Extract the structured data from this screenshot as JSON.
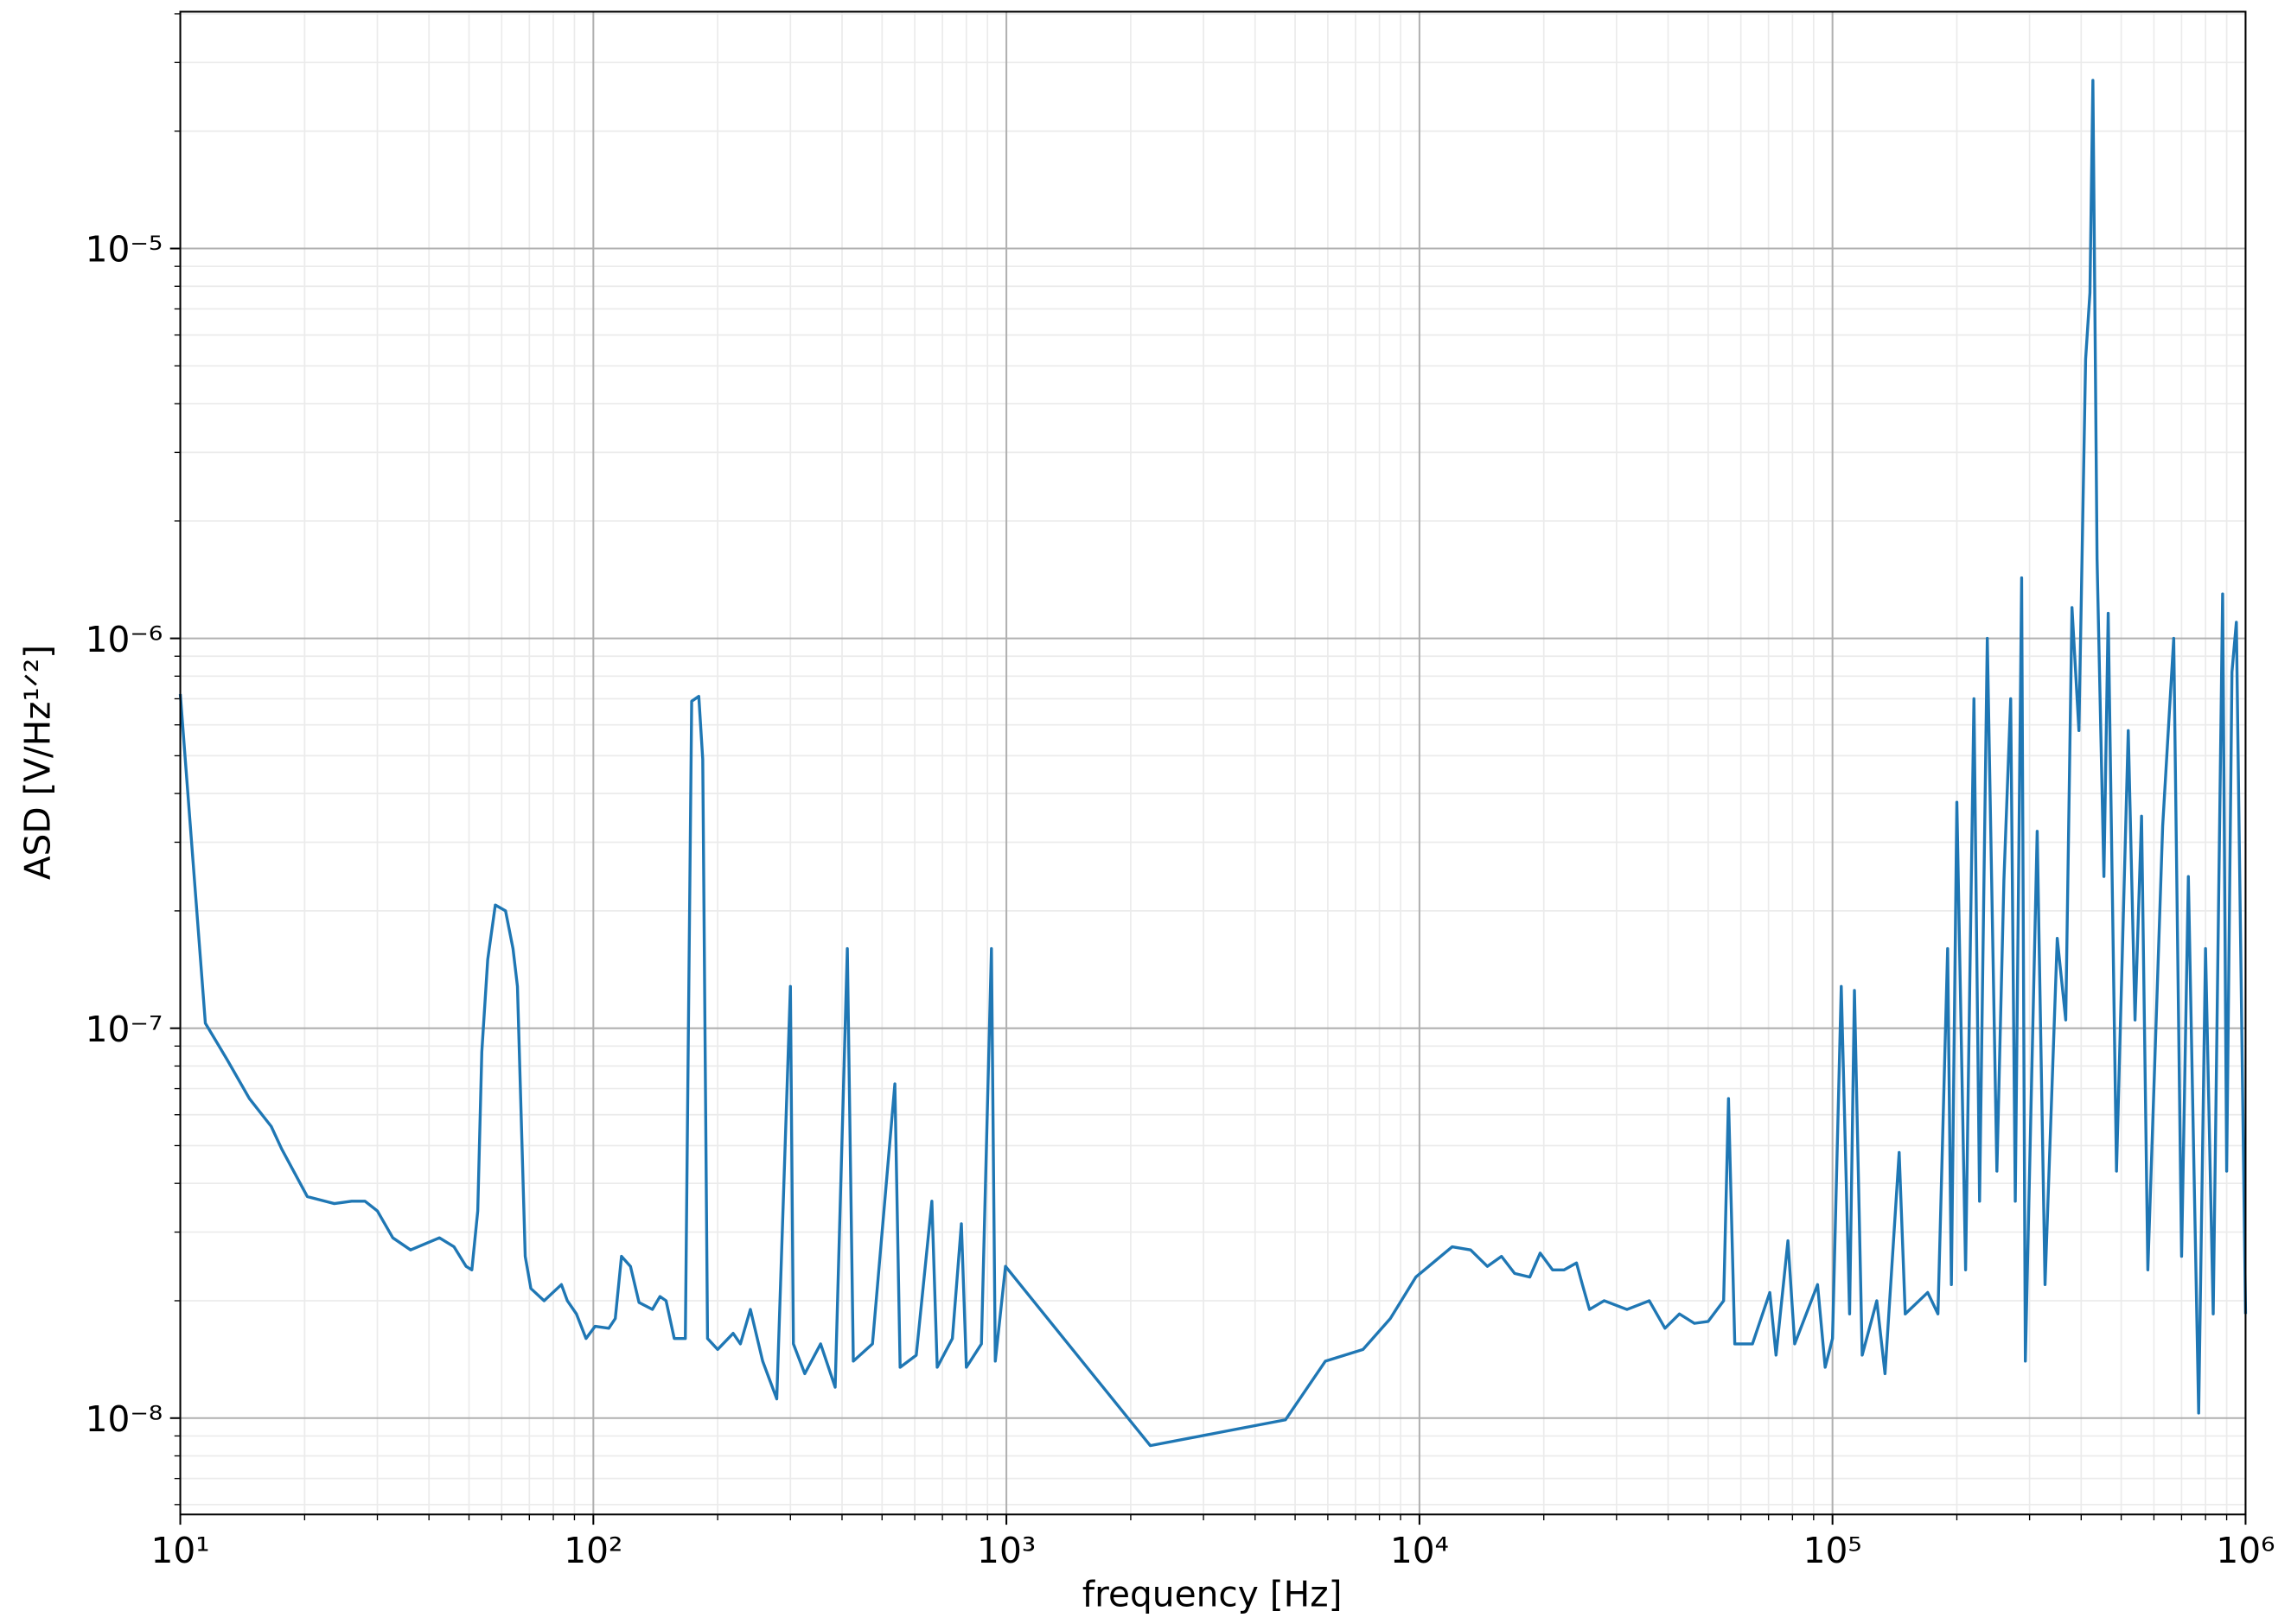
{
  "chart_data": {
    "type": "line",
    "x_label": "frequency [Hz]",
    "y_label": "ASD [V/Hz¹ᐟ²]",
    "xscale": "log",
    "yscale": "log",
    "grid": true,
    "minor_grid": true,
    "xlim": [
      10,
      1000000
    ],
    "ylim": [
      5.66e-09,
      4.05e-05
    ],
    "xticks": [
      {
        "value": 10,
        "label": "10¹"
      },
      {
        "value": 100,
        "label": "10²"
      },
      {
        "value": 1000,
        "label": "10³"
      },
      {
        "value": 10000,
        "label": "10⁴"
      },
      {
        "value": 100000,
        "label": "10⁵"
      },
      {
        "value": 1000000,
        "label": "10⁶"
      }
    ],
    "yticks": [
      {
        "value": 1e-08,
        "label": "10⁻⁸"
      },
      {
        "value": 1e-07,
        "label": "10⁻⁷"
      },
      {
        "value": 1e-06,
        "label": "10⁻⁶"
      },
      {
        "value": 1e-05,
        "label": "10⁻⁵"
      }
    ],
    "series": [
      {
        "color": "#1f77b4",
        "x": [
          10,
          11.5,
          12.99,
          14.7,
          16.6,
          17.6,
          20.3,
          23.6,
          26,
          28,
          30,
          32.7,
          36.1,
          42.4,
          46,
          49.2,
          50.8,
          52.5,
          53.7,
          55.5,
          57.9,
          61.3,
          63.9,
          65.5,
          68.4,
          70.6,
          76,
          83.7,
          86.5,
          91,
          96,
          101,
          109,
          113,
          117,
          123,
          129,
          139,
          145,
          150,
          157,
          167,
          173,
          180,
          184,
          189,
          200,
          218,
          227,
          240,
          257,
          278,
          300,
          305,
          325,
          355,
          385,
          412,
          426,
          474,
          537,
          553,
          605,
          660,
          680,
          740,
          778,
          800,
          870,
          920,
          940,
          995,
          2230,
          4740,
          5920,
          7300,
          8500,
          9800,
          12000,
          13300,
          14600,
          15800,
          17000,
          18500,
          19600,
          21000,
          22400,
          24000,
          24800,
          25800,
          28000,
          31800,
          36000,
          39300,
          42600,
          46300,
          50000,
          54500,
          56000,
          58000,
          64000,
          70500,
          73000,
          78000,
          81000,
          92000,
          96000,
          100000,
          105000,
          110000,
          113000,
          118000,
          128000,
          134000,
          145000,
          150000,
          170000,
          180000,
          190000,
          194000,
          200000,
          210000,
          220000,
          227000,
          237000,
          250000,
          260000,
          270000,
          277000,
          287000,
          293000,
          313000,
          327000,
          350000,
          367000,
          380000,
          395000,
          410000,
          420000,
          427000,
          437000,
          454000,
          465000,
          487000,
          520000,
          540000,
          560000,
          580000,
          630000,
          670000,
          700000,
          727000,
          770000,
          800000,
          835000,
          880000,
          900000,
          927000,
          950000,
          1000000
        ],
        "values": [
          7.2e-07,
          1.03e-07,
          8.3e-08,
          6.6e-08,
          5.6e-08,
          4.9e-08,
          3.7e-08,
          3.55e-08,
          3.6e-08,
          3.6e-08,
          3.4e-08,
          2.9e-08,
          2.7e-08,
          2.9e-08,
          2.75e-08,
          2.45e-08,
          2.4e-08,
          3.4e-08,
          8.7e-08,
          1.5e-07,
          2.07e-07,
          2e-07,
          1.6e-07,
          1.28e-07,
          2.6e-08,
          2.15e-08,
          2e-08,
          2.2e-08,
          2e-08,
          1.85e-08,
          1.6e-08,
          1.72e-08,
          1.7e-08,
          1.8e-08,
          2.6e-08,
          2.45e-08,
          1.98e-08,
          1.9e-08,
          2.05e-08,
          2e-08,
          1.6e-08,
          1.6e-08,
          6.9e-07,
          7.1e-07,
          4.9e-07,
          1.6e-08,
          1.5e-08,
          1.65e-08,
          1.55e-08,
          1.9e-08,
          1.4e-08,
          1.12e-08,
          1.28e-07,
          1.55e-08,
          1.3e-08,
          1.55e-08,
          1.2e-08,
          1.6e-07,
          1.4e-08,
          1.55e-08,
          7.2e-08,
          1.35e-08,
          1.45e-08,
          3.6e-08,
          1.35e-08,
          1.6e-08,
          3.15e-08,
          1.35e-08,
          1.55e-08,
          1.6e-07,
          1.4e-08,
          2.45e-08,
          8.5e-09,
          9.9e-09,
          1.4e-08,
          1.5e-08,
          1.8e-08,
          2.3e-08,
          2.75e-08,
          2.7e-08,
          2.45e-08,
          2.6e-08,
          2.35e-08,
          2.3e-08,
          2.65e-08,
          2.4e-08,
          2.4e-08,
          2.5e-08,
          2.2e-08,
          1.9e-08,
          2e-08,
          1.9e-08,
          2e-08,
          1.7e-08,
          1.85e-08,
          1.75e-08,
          1.77e-08,
          2e-08,
          6.6e-08,
          1.55e-08,
          1.55e-08,
          2.1e-08,
          1.45e-08,
          2.85e-08,
          1.55e-08,
          2.2e-08,
          1.35e-08,
          1.6e-08,
          1.28e-07,
          1.85e-08,
          1.25e-07,
          1.45e-08,
          2e-08,
          1.3e-08,
          4.8e-08,
          1.85e-08,
          2.1e-08,
          1.85e-08,
          1.6e-07,
          2.2e-08,
          3.8e-07,
          2.4e-08,
          7e-07,
          3.6e-08,
          1e-06,
          4.3e-08,
          2.4e-07,
          7e-07,
          3.6e-08,
          1.43e-06,
          1.4e-08,
          3.2e-07,
          2.2e-08,
          1.7e-07,
          1.05e-07,
          1.2e-06,
          5.8e-07,
          5.2e-06,
          7.7e-06,
          2.7e-05,
          1.6e-06,
          2.45e-07,
          1.16e-06,
          4.3e-08,
          5.8e-07,
          1.05e-07,
          3.5e-07,
          2.4e-08,
          3.3e-07,
          1e-06,
          2.6e-08,
          2.45e-07,
          1.03e-08,
          1.6e-07,
          1.85e-08,
          1.3e-06,
          4.3e-08,
          8.2e-07,
          1.1e-06,
          1.85e-08
        ]
      }
    ]
  }
}
